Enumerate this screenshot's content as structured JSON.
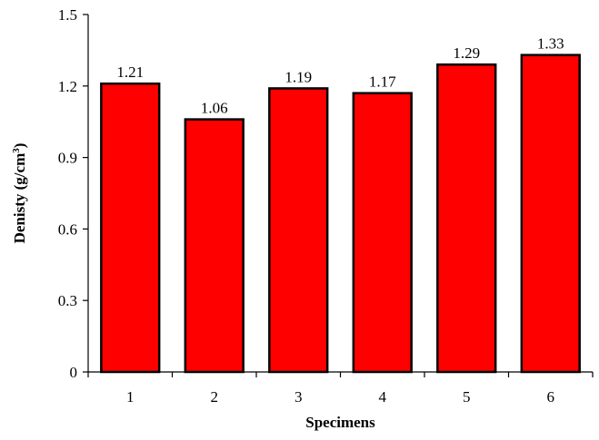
{
  "chart_data": {
    "type": "bar",
    "categories": [
      "1",
      "2",
      "3",
      "4",
      "5",
      "6"
    ],
    "values": [
      1.21,
      1.06,
      1.19,
      1.17,
      1.29,
      1.33
    ],
    "data_labels": [
      "1.21",
      "1.06",
      "1.19",
      "1.17",
      "1.29",
      "1.33"
    ],
    "xlabel": "Specimens",
    "ylabel": "Denisty (g/cm",
    "ylabel_superscript": "3",
    "ylabel_suffix": ")",
    "ylim": [
      0,
      1.5
    ],
    "y_ticks": [
      0,
      0.3,
      0.6,
      0.9,
      1.2,
      1.5
    ],
    "y_tick_labels": [
      "0",
      "0.3",
      "0.6",
      "0.9",
      "1.2",
      "1.5"
    ],
    "grid": false,
    "legend": "none",
    "bar_color": "#ff0000",
    "bar_edge_color": "#000000"
  }
}
